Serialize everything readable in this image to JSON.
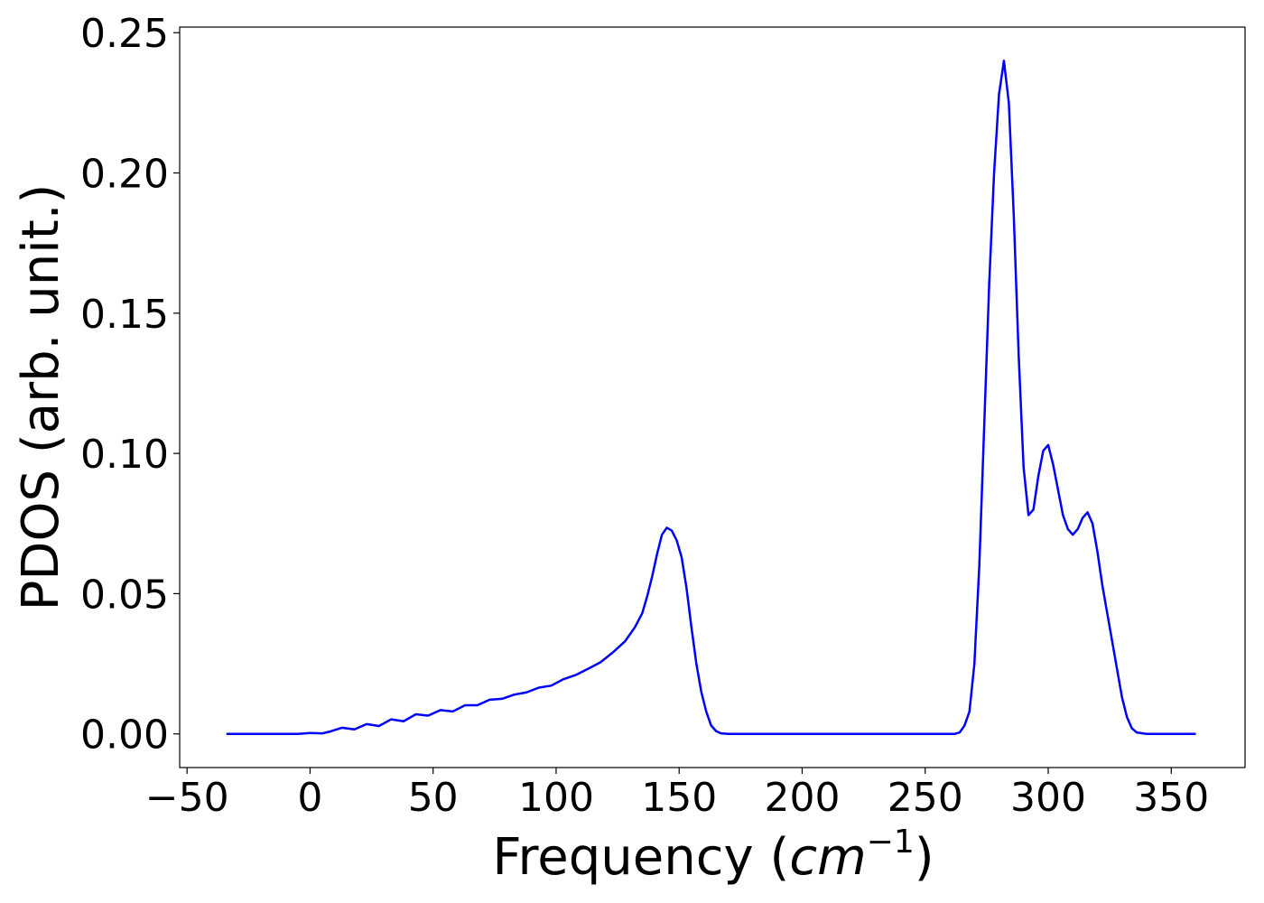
{
  "chart_data": {
    "type": "line",
    "title": "",
    "xlabel": "Frequency (",
    "xlabel_math": "cm",
    "xlabel_exp": "−1",
    "xlabel_close": ")",
    "ylabel": "PDOS (arb. unit.)",
    "xlim": [
      -53,
      380
    ],
    "ylim": [
      -0.012,
      0.252
    ],
    "xticks": [
      -50,
      0,
      50,
      100,
      150,
      200,
      250,
      300,
      350
    ],
    "xtick_labels": [
      "−50",
      "0",
      "50",
      "100",
      "150",
      "200",
      "250",
      "300",
      "350"
    ],
    "yticks": [
      0.0,
      0.05,
      0.1,
      0.15,
      0.2,
      0.25
    ],
    "ytick_labels": [
      "0.00",
      "0.05",
      "0.10",
      "0.15",
      "0.20",
      "0.25"
    ],
    "grid": false,
    "series": [
      {
        "color": "#0000ff",
        "x": [
          -34,
          -5,
          0,
          5,
          8,
          13,
          18,
          23,
          28,
          33,
          38,
          43,
          48,
          53,
          58,
          63,
          68,
          73,
          78,
          83,
          88,
          93,
          98,
          103,
          108,
          113,
          118,
          123,
          128,
          132,
          135,
          137,
          139,
          141,
          143,
          145,
          147,
          149,
          151,
          153,
          155,
          157,
          159,
          161,
          163,
          165,
          167,
          170,
          200,
          250,
          262,
          264,
          266,
          268,
          270,
          272,
          274,
          276,
          278,
          280,
          282,
          284,
          286,
          288,
          290,
          292,
          294,
          296,
          298,
          300,
          302,
          304,
          306,
          308,
          310,
          312,
          314,
          316,
          318,
          320,
          322,
          324,
          326,
          328,
          330,
          332,
          334,
          336,
          340,
          360
        ],
        "y": [
          0.0,
          0.0,
          0.0003,
          0.0002,
          0.0008,
          0.0022,
          0.0016,
          0.0035,
          0.0028,
          0.0052,
          0.0045,
          0.007,
          0.0065,
          0.0085,
          0.008,
          0.0102,
          0.0102,
          0.0122,
          0.0125,
          0.014,
          0.0148,
          0.0165,
          0.0172,
          0.0195,
          0.021,
          0.0232,
          0.0255,
          0.029,
          0.033,
          0.038,
          0.043,
          0.049,
          0.056,
          0.064,
          0.071,
          0.0735,
          0.0725,
          0.069,
          0.063,
          0.052,
          0.038,
          0.025,
          0.015,
          0.008,
          0.003,
          0.001,
          0.0002,
          0.0,
          0.0,
          0.0,
          0.0,
          0.0005,
          0.003,
          0.008,
          0.025,
          0.06,
          0.11,
          0.16,
          0.2,
          0.228,
          0.24,
          0.225,
          0.185,
          0.135,
          0.095,
          0.078,
          0.08,
          0.092,
          0.101,
          0.103,
          0.096,
          0.087,
          0.078,
          0.073,
          0.071,
          0.073,
          0.077,
          0.079,
          0.075,
          0.065,
          0.053,
          0.043,
          0.033,
          0.023,
          0.013,
          0.006,
          0.002,
          0.0005,
          0.0,
          0.0
        ]
      }
    ]
  }
}
